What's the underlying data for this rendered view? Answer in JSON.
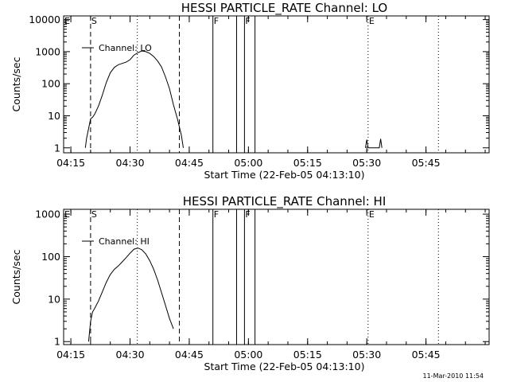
{
  "chart_data": [
    {
      "type": "line",
      "title": "HESSI PARTICLE_RATE Channel: LO",
      "xlabel": "Start Time (22-Feb-05 04:13:10)",
      "ylabel": "Counts/sec",
      "yscale": "log",
      "ylim": [
        0.7,
        13000
      ],
      "xlim": [
        "04:13:10",
        "06:01:00"
      ],
      "x_ticks": [
        "04:15",
        "04:30",
        "04:45",
        "05:00",
        "05:15",
        "05:30",
        "05:45"
      ],
      "y_ticks": [
        "1",
        "10",
        "100",
        "1000",
        "10000"
      ],
      "legend": "top-left",
      "series": [
        {
          "name": "Channel: LO",
          "x": [
            "04:18:40",
            "04:19:00",
            "04:19:30",
            "04:20:00",
            "04:20:30",
            "04:21:00",
            "04:22:00",
            "04:23:00",
            "04:24:00",
            "04:25:00",
            "04:26:00",
            "04:27:00",
            "04:28:00",
            "04:29:00",
            "04:30:00",
            "04:31:00",
            "04:32:00",
            "04:33:00",
            "04:34:00",
            "04:35:00",
            "04:36:00",
            "04:37:00",
            "04:38:00",
            "04:39:00",
            "04:40:00",
            "04:41:00",
            "04:42:00",
            "04:43:00",
            "04:43:30"
          ],
          "values": [
            1,
            2,
            4,
            8,
            9,
            11,
            20,
            45,
            110,
            220,
            320,
            390,
            430,
            470,
            560,
            780,
            930,
            1050,
            1000,
            880,
            700,
            510,
            330,
            160,
            70,
            22,
            8,
            2.5,
            1
          ]
        },
        {
          "name": "",
          "x": [
            "05:29:40",
            "05:30:00",
            "05:30:20",
            "05:33:10",
            "05:33:30",
            "05:33:50"
          ],
          "values": [
            1,
            1.8,
            1,
            1,
            1.9,
            1
          ]
        }
      ],
      "markers": [
        {
          "label": "E",
          "time": "04:13:10",
          "style": "dotted"
        },
        {
          "label": "S",
          "time": "04:20:00",
          "style": "dashed"
        },
        {
          "label": "",
          "time": "04:31:50",
          "style": "dotted"
        },
        {
          "label": "",
          "time": "04:42:30",
          "style": "dashed"
        },
        {
          "label": "F",
          "time": "04:51:00",
          "style": "solid"
        },
        {
          "label": "",
          "time": "04:57:00",
          "style": "solid"
        },
        {
          "label": "F",
          "time": "04:59:00",
          "style": "solid"
        },
        {
          "label": "",
          "time": "05:01:40",
          "style": "solid"
        },
        {
          "label": "E",
          "time": "05:30:20",
          "style": "dotted"
        },
        {
          "label": "",
          "time": "05:48:10",
          "style": "dotted"
        }
      ]
    },
    {
      "type": "line",
      "title": "HESSI PARTICLE_RATE Channel: HI",
      "xlabel": "Start Time (22-Feb-05 04:13:10)",
      "ylabel": "Counts/sec",
      "yscale": "log",
      "ylim": [
        0.85,
        1300
      ],
      "xlim": [
        "04:13:10",
        "06:01:00"
      ],
      "x_ticks": [
        "04:15",
        "04:30",
        "04:45",
        "05:00",
        "05:15",
        "05:30",
        "05:45"
      ],
      "y_ticks": [
        "1",
        "10",
        "100",
        "1000"
      ],
      "legend": "top-left",
      "series": [
        {
          "name": "Channel: HI",
          "x": [
            "04:19:30",
            "04:20:00",
            "04:20:30",
            "04:21:00",
            "04:22:00",
            "04:23:00",
            "04:24:00",
            "04:25:00",
            "04:26:00",
            "04:27:00",
            "04:28:00",
            "04:29:00",
            "04:30:00",
            "04:31:00",
            "04:32:00",
            "04:33:00",
            "04:34:00",
            "04:35:00",
            "04:36:00",
            "04:37:00",
            "04:38:00",
            "04:39:00",
            "04:40:00",
            "04:41:00"
          ],
          "values": [
            1,
            3,
            5,
            6,
            9,
            15,
            25,
            38,
            50,
            60,
            75,
            95,
            120,
            150,
            160,
            145,
            115,
            80,
            50,
            28,
            14,
            7,
            3.5,
            2
          ]
        }
      ],
      "markers": [
        {
          "label": "E",
          "time": "04:13:10",
          "style": "dotted"
        },
        {
          "label": "S",
          "time": "04:20:00",
          "style": "dashed"
        },
        {
          "label": "",
          "time": "04:31:50",
          "style": "dotted"
        },
        {
          "label": "",
          "time": "04:42:30",
          "style": "dashed"
        },
        {
          "label": "F",
          "time": "04:51:00",
          "style": "solid"
        },
        {
          "label": "",
          "time": "04:57:00",
          "style": "solid"
        },
        {
          "label": "F",
          "time": "04:59:00",
          "style": "solid"
        },
        {
          "label": "",
          "time": "05:01:40",
          "style": "solid"
        },
        {
          "label": "E",
          "time": "05:30:20",
          "style": "dotted"
        },
        {
          "label": "",
          "time": "05:48:10",
          "style": "dotted"
        }
      ]
    }
  ],
  "footer": {
    "timestamp": "11-Mar-2010 11:54"
  }
}
